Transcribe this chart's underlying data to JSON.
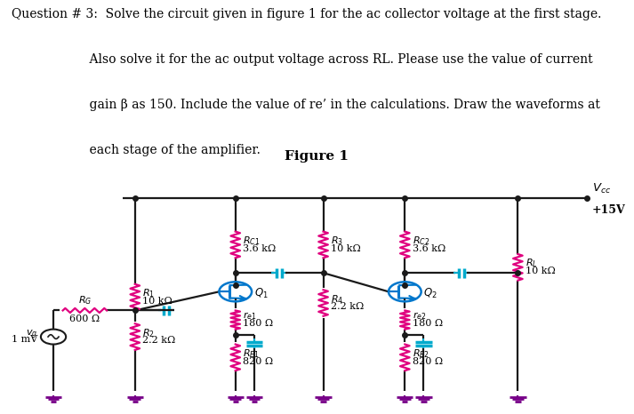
{
  "bg_color": "#e8dfd0",
  "wire_color": "#1a1a1a",
  "pink": "#e0007f",
  "blue": "#00aacc",
  "purple": "#770088",
  "trans_color": "#0077cc",
  "fs_title": 10.0,
  "fs_comp": 8.0,
  "fs_label": 8.5,
  "title_lines": [
    "Question # 3:  Solve the circuit given in figure 1 for the ac collector voltage at the first stage.",
    "                    Also solve it for the ac output voltage across RL. Please use the value of current",
    "                    gain β as 150. Include the value of re’ in the calculations. Draw the waveforms at",
    "                    each stage of the amplifier."
  ],
  "fig_label": "Figure 1",
  "VCC": "+15V",
  "RG_lbl": [
    "$R_G$",
    "600 Ω"
  ],
  "R1_lbl": [
    "$R_1$",
    "10 kΩ"
  ],
  "R2_lbl": [
    "$R_2$",
    "2.2 kΩ"
  ],
  "RC1_lbl": [
    "$R_{C1}$",
    "3.6 kΩ"
  ],
  "R3_lbl": [
    "$R_3$",
    "10 kΩ"
  ],
  "R4_lbl": [
    "$R_4$",
    "2.2 kΩ"
  ],
  "RC2_lbl": [
    "$R_{C2}$",
    "3.6 kΩ"
  ],
  "RL_lbl": [
    "$R_L$",
    "10 kΩ"
  ],
  "re1_lbl": [
    "$r_{e1}$",
    "180 Ω"
  ],
  "RE1_lbl": [
    "$R_{E1}$",
    "820 Ω"
  ],
  "re2_lbl": [
    "$r_{e2}$",
    "180 Ω"
  ],
  "RE2_lbl": [
    "$R_{E2}$",
    "820 Ω"
  ],
  "Vg_lbl": [
    "$v_g$",
    "1 mV"
  ],
  "Q1_lbl": "$Q_1$",
  "Q2_lbl": "$Q_2$",
  "Vcc_lbl": "$V_{cc}$",
  "Vcc_val": "+15V"
}
